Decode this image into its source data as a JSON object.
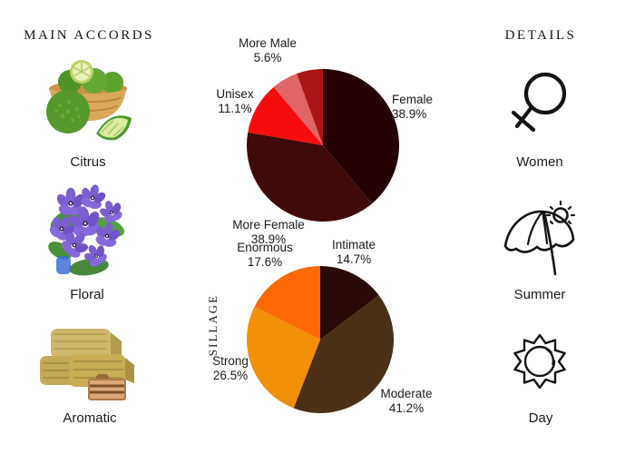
{
  "left_panel": {
    "title": "MAIN ACCORDS",
    "items": [
      {
        "label": "Citrus",
        "image": "bergamot-fruits-in-basket-photo"
      },
      {
        "label": "Floral",
        "image": "violet-flowers-photo"
      },
      {
        "label": "Aromatic",
        "image": "hay-bales-photo"
      }
    ]
  },
  "right_panel": {
    "title": "DETAILS",
    "items": [
      {
        "label": "Women",
        "icon": "female-gender-icon"
      },
      {
        "label": "Summer",
        "icon": "beach-umbrella-sun-icon"
      },
      {
        "label": "Day",
        "icon": "sun-icon"
      }
    ]
  },
  "chart_data": [
    {
      "type": "pie",
      "name": "gender-votes",
      "start_angle": "12-oclock",
      "direction": "clockwise",
      "legend_position": "none",
      "labels": "outside",
      "slices": [
        {
          "label": "Female",
          "pct": "38.9%",
          "value": 38.9,
          "color": "#250305"
        },
        {
          "label": "More Female",
          "pct": "38.9%",
          "value": 38.9,
          "color": "#400a0a"
        },
        {
          "label": "Unisex",
          "pct": "11.1%",
          "value": 11.1,
          "color": "#f60c0c"
        },
        {
          "label": "More Male",
          "pct": "5.6%",
          "value": 5.6,
          "color": "#e06565"
        },
        {
          "label": "",
          "pct": "",
          "value": 5.6,
          "color": "#aa1515"
        }
      ]
    },
    {
      "type": "pie",
      "name": "sillage-votes",
      "axis_label": "SILLAGE",
      "start_angle": "12-oclock",
      "direction": "clockwise",
      "legend_position": "none",
      "labels": "outside",
      "slices": [
        {
          "label": "Intimate",
          "pct": "14.7%",
          "value": 14.7,
          "color": "#2a0a07"
        },
        {
          "label": "Moderate",
          "pct": "41.2%",
          "value": 41.2,
          "color": "#4a3014"
        },
        {
          "label": "Strong",
          "pct": "26.5%",
          "value": 26.5,
          "color": "#f29008"
        },
        {
          "label": "Enormous",
          "pct": "17.6%",
          "value": 17.6,
          "color": "#fd6a05"
        }
      ]
    }
  ]
}
